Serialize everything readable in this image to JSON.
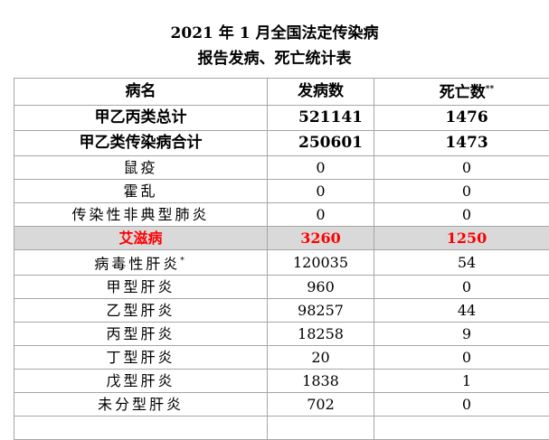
{
  "title": {
    "line1": "2021 年 1 月全国法定传染病",
    "line2": "报告发病、死亡统计表"
  },
  "headers": {
    "name": "病名",
    "cases": "发病数",
    "deaths": "死亡数",
    "deaths_mark": "**"
  },
  "rows": [
    {
      "name": "甲乙丙类总计",
      "cases": "521141",
      "deaths": "1476",
      "style": "bold"
    },
    {
      "name": "甲乙类传染病合计",
      "cases": "250601",
      "deaths": "1473",
      "style": "bold"
    },
    {
      "name": "鼠疫",
      "cases": "0",
      "deaths": "0",
      "style": "normal"
    },
    {
      "name": "霍乱",
      "cases": "0",
      "deaths": "0",
      "style": "normal"
    },
    {
      "name": "传染性非典型肺炎",
      "cases": "0",
      "deaths": "0",
      "style": "normal"
    },
    {
      "name": "艾滋病",
      "cases": "3260",
      "deaths": "1250",
      "style": "highlight"
    },
    {
      "name": "病毒性肝炎",
      "mark": "*",
      "cases": "120035",
      "deaths": "54",
      "style": "normal"
    },
    {
      "name": "甲型肝炎",
      "cases": "960",
      "deaths": "0",
      "style": "normal"
    },
    {
      "name": "乙型肝炎",
      "cases": "98257",
      "deaths": "44",
      "style": "normal"
    },
    {
      "name": "丙型肝炎",
      "cases": "18258",
      "deaths": "9",
      "style": "normal"
    },
    {
      "name": "丁型肝炎",
      "cases": "20",
      "deaths": "0",
      "style": "normal"
    },
    {
      "name": "戊型肝炎",
      "cases": "1838",
      "deaths": "1",
      "style": "normal"
    },
    {
      "name": "未分型肝炎",
      "cases": "702",
      "deaths": "0",
      "style": "normal"
    }
  ],
  "colors": {
    "highlight_bg": "#d9d9d9",
    "highlight_text": "#ff0000",
    "border": "#a6a6a6"
  }
}
